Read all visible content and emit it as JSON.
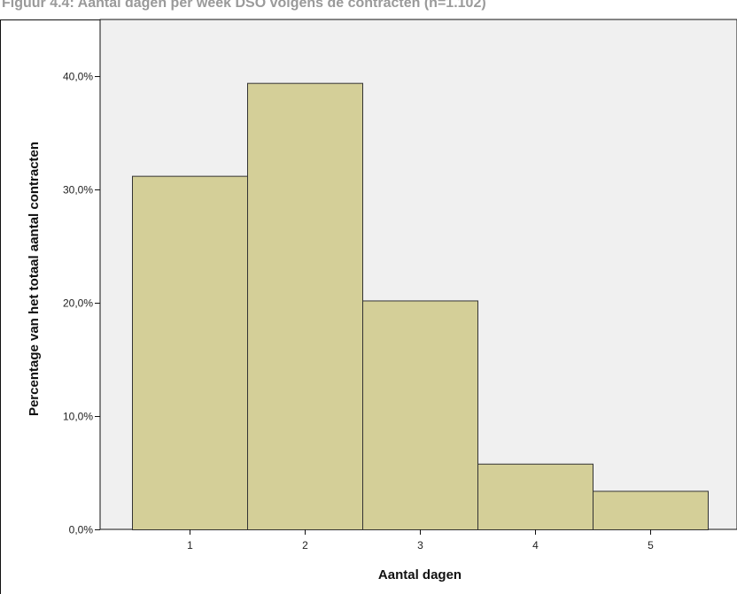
{
  "header": {
    "title": "Figuur 4.4: Aantal dagen per week DSO volgens de contracten (n=1.102)"
  },
  "chart_data": {
    "type": "bar",
    "categories": [
      "1",
      "2",
      "3",
      "4",
      "5"
    ],
    "values": [
      31.2,
      39.4,
      20.2,
      5.8,
      3.4
    ],
    "ylim": [
      0,
      45
    ],
    "yticks": [
      0,
      10,
      20,
      30,
      40
    ],
    "ytick_labels": [
      "0,0%",
      "10,0%",
      "20,0%",
      "30,0%",
      "40,0%"
    ],
    "xlabel": "Aantal dagen",
    "ylabel": "Percentage van het totaal aantal contracten",
    "grid": false,
    "colors": {
      "bar_fill": "#d4cf98",
      "bar_stroke": "#333333",
      "plot_background": "#f0f0f0"
    }
  }
}
